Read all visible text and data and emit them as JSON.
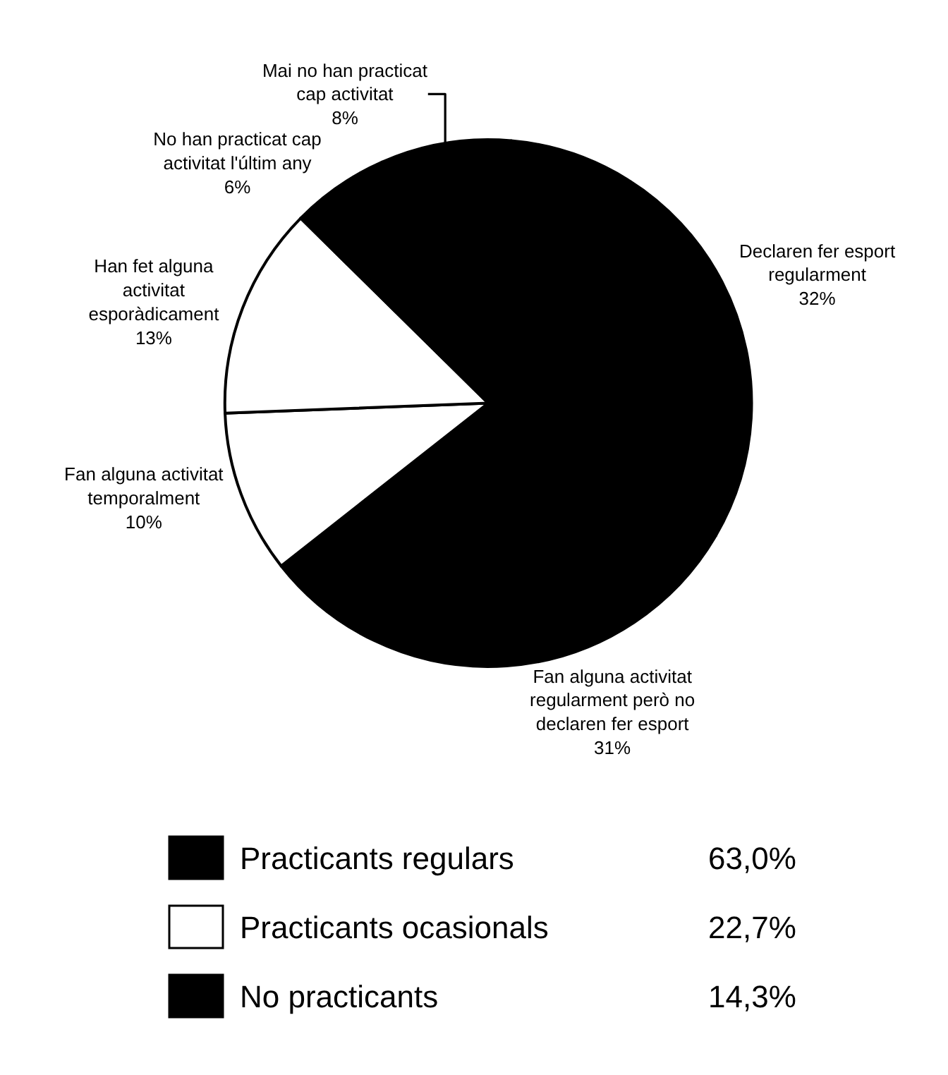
{
  "chart_data": [
    {
      "type": "pie",
      "categories": [
        "Declaren fer esport\nregularment",
        "Fan alguna activitat\nregularment però no\ndeclaren fer esport",
        "Fan alguna activitat\ntemporalment",
        "Han fet alguna\nactivitat\nesporàdicament",
        "No han practicat cap\nactivitat l'últim any",
        "Mai no han practicat\ncap activitat"
      ],
      "values": [
        32,
        31,
        10,
        13,
        6,
        8
      ],
      "value_labels": [
        "32%",
        "31%",
        "10%",
        "13%",
        "6%",
        "8%"
      ],
      "colors": [
        "#000000",
        "#000000",
        "#ffffff",
        "#ffffff",
        "#000000",
        "#000000"
      ]
    },
    {
      "type": "other",
      "categories": [
        "Practicants regulars",
        "Practicants ocasionals",
        "No practicants"
      ],
      "value_labels": [
        "63,0%",
        "22,7%",
        "14,3%"
      ],
      "colors": [
        "#000000",
        "#ffffff",
        "#000000"
      ]
    }
  ]
}
